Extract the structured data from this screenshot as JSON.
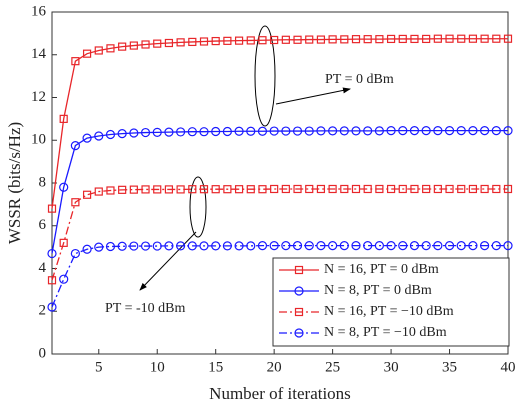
{
  "chart_data": {
    "type": "line",
    "xlabel": "Number of iterations",
    "ylabel": "WSSR (bits/s/Hz)",
    "x": [
      1,
      2,
      3,
      4,
      5,
      6,
      7,
      8,
      9,
      10,
      11,
      12,
      13,
      14,
      15,
      16,
      17,
      18,
      19,
      20,
      21,
      22,
      23,
      24,
      25,
      26,
      27,
      28,
      29,
      30,
      31,
      32,
      33,
      34,
      35,
      36,
      37,
      38,
      39,
      40
    ],
    "xlim": [
      1,
      40
    ],
    "xticks": [
      5,
      10,
      15,
      20,
      25,
      30,
      35,
      40
    ],
    "ylim": [
      0,
      16
    ],
    "yticks": [
      0,
      2,
      4,
      6,
      8,
      10,
      12,
      14,
      16
    ],
    "annotations": [
      "PT = 0 dBm",
      "PT = -10 dBm"
    ],
    "series": [
      {
        "name": "N = 16, PT = 0 dBm",
        "color": "#e8262a",
        "linestyle": "solid",
        "marker": "square",
        "values": [
          6.8,
          11.0,
          13.7,
          14.05,
          14.2,
          14.3,
          14.38,
          14.43,
          14.48,
          14.52,
          14.55,
          14.58,
          14.6,
          14.62,
          14.64,
          14.65,
          14.66,
          14.67,
          14.68,
          14.69,
          14.7,
          14.7,
          14.71,
          14.71,
          14.72,
          14.72,
          14.73,
          14.73,
          14.73,
          14.74,
          14.74,
          14.74,
          14.74,
          14.75,
          14.75,
          14.75,
          14.75,
          14.75,
          14.75,
          14.75
        ]
      },
      {
        "name": "N = 8, PT = 0 dBm",
        "color": "#1a1aff",
        "linestyle": "solid",
        "marker": "circle",
        "values": [
          4.7,
          7.8,
          9.75,
          10.1,
          10.2,
          10.27,
          10.31,
          10.34,
          10.36,
          10.37,
          10.38,
          10.39,
          10.4,
          10.4,
          10.41,
          10.41,
          10.42,
          10.42,
          10.42,
          10.43,
          10.43,
          10.43,
          10.43,
          10.44,
          10.44,
          10.44,
          10.44,
          10.44,
          10.44,
          10.45,
          10.45,
          10.45,
          10.45,
          10.45,
          10.45,
          10.45,
          10.45,
          10.45,
          10.45,
          10.45
        ]
      },
      {
        "name": "N = 16, PT = −10 dBm",
        "color": "#e8262a",
        "linestyle": "dashdot",
        "marker": "square",
        "values": [
          3.45,
          5.2,
          7.1,
          7.45,
          7.6,
          7.65,
          7.68,
          7.69,
          7.7,
          7.7,
          7.7,
          7.7,
          7.71,
          7.71,
          7.71,
          7.71,
          7.71,
          7.71,
          7.71,
          7.72,
          7.72,
          7.72,
          7.72,
          7.72,
          7.72,
          7.72,
          7.72,
          7.72,
          7.72,
          7.72,
          7.72,
          7.72,
          7.72,
          7.72,
          7.72,
          7.72,
          7.72,
          7.72,
          7.72,
          7.72
        ]
      },
      {
        "name": "N = 8, PT = −10 dBm",
        "color": "#1a1aff",
        "linestyle": "dashdot",
        "marker": "circle",
        "values": [
          2.2,
          3.5,
          4.7,
          4.9,
          5.0,
          5.03,
          5.04,
          5.05,
          5.05,
          5.05,
          5.06,
          5.06,
          5.06,
          5.06,
          5.06,
          5.06,
          5.06,
          5.06,
          5.07,
          5.07,
          5.07,
          5.07,
          5.07,
          5.07,
          5.07,
          5.07,
          5.07,
          5.07,
          5.07,
          5.07,
          5.07,
          5.07,
          5.07,
          5.07,
          5.07,
          5.07,
          5.07,
          5.07,
          5.07,
          5.07
        ]
      }
    ]
  }
}
